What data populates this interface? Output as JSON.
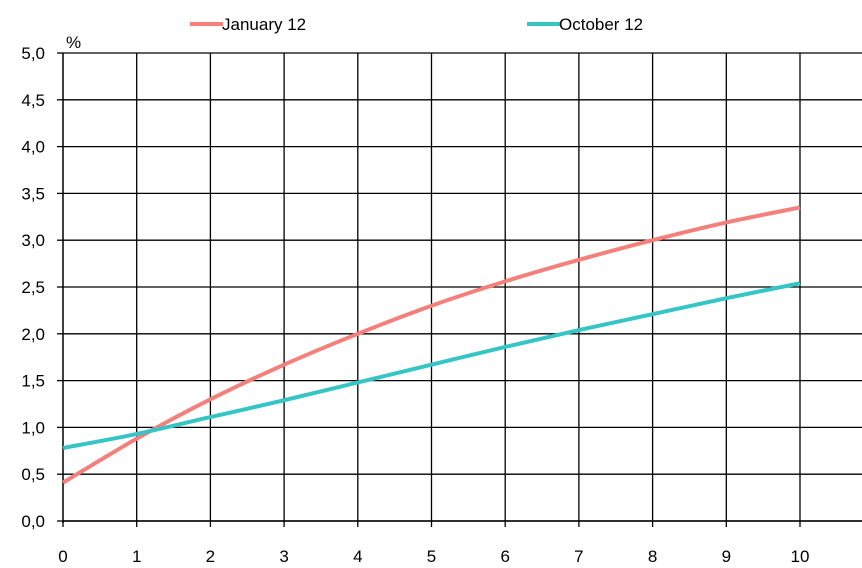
{
  "chart_data": {
    "type": "line",
    "title": "",
    "xlabel": "",
    "ylabel": "%",
    "x": [
      0,
      1,
      2,
      3,
      4,
      5,
      6,
      7,
      8,
      9,
      10
    ],
    "xlim": [
      0,
      10
    ],
    "ylim": [
      0,
      5
    ],
    "x_ticks": [
      "0",
      "1",
      "2",
      "3",
      "4",
      "5",
      "6",
      "7",
      "8",
      "9",
      "10"
    ],
    "y_ticks": [
      "0,0",
      "0,5",
      "1,0",
      "1,5",
      "2,0",
      "2,5",
      "3,0",
      "3,5",
      "4,0",
      "4,5",
      "5,0"
    ],
    "grid": true,
    "legend_position": "top",
    "series": [
      {
        "name": "January 12",
        "color": "#f47f7b",
        "values": [
          0.41,
          0.88,
          1.3,
          1.67,
          2.0,
          2.3,
          2.56,
          2.79,
          3.0,
          3.19,
          3.35
        ]
      },
      {
        "name": "October 12",
        "color": "#36c5c5",
        "values": [
          0.78,
          0.93,
          1.11,
          1.29,
          1.48,
          1.67,
          1.86,
          2.04,
          2.21,
          2.38,
          2.54
        ]
      }
    ]
  }
}
